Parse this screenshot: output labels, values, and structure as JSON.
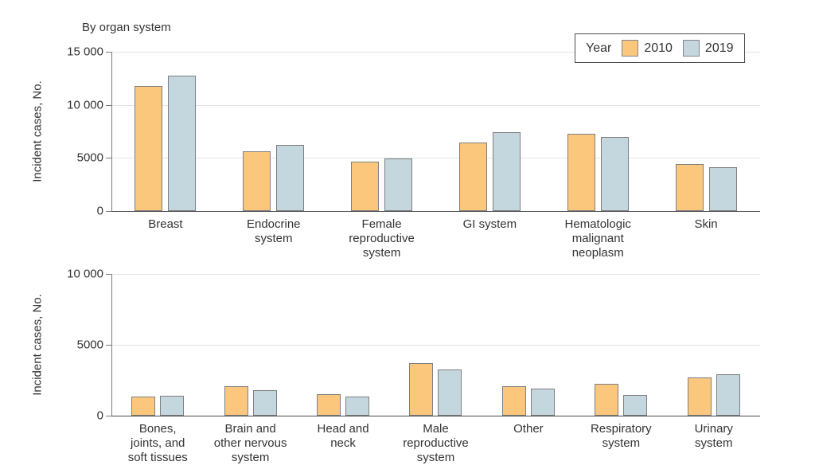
{
  "figure": {
    "title": "By organ system"
  },
  "legend": {
    "title": "Year",
    "items": [
      {
        "label": "2010",
        "color": "#FAC77D"
      },
      {
        "label": "2019",
        "color": "#C4D6DE"
      }
    ]
  },
  "style": {
    "bar_fill_2010": "#FAC77D",
    "bar_fill_2019": "#C4D6DE",
    "bar_border": "#7E7F81",
    "grid_color": "#E4E4E4",
    "axis_color": "#4A4A4C",
    "text_color": "#333333"
  },
  "chart_data": [
    {
      "type": "bar",
      "panel": "top",
      "title": "By organ system",
      "xlabel": "",
      "ylabel": "Incident cases, No.",
      "ylim": [
        0,
        15000
      ],
      "yticks": [
        0,
        5000,
        10000,
        15000
      ],
      "ytick_labels": [
        "0",
        "5000",
        "10 000",
        "15 000"
      ],
      "grid": true,
      "legend_position": "top-right",
      "categories": [
        "Breast",
        "Endocrine system",
        "Female reproductive system",
        "GI system",
        "Hematologic malignant neoplasm",
        "Skin"
      ],
      "category_labels": [
        "Breast",
        "Endocrine\nsystem",
        "Female\nreproductive\nsystem",
        "GI system",
        "Hematologic\nmalignant\nneoplasm",
        "Skin"
      ],
      "series": [
        {
          "name": "2010",
          "color": "#FAC77D",
          "values": [
            11800,
            5650,
            4650,
            6450,
            7300,
            4450
          ]
        },
        {
          "name": "2019",
          "color": "#C4D6DE",
          "values": [
            12750,
            6250,
            4950,
            7400,
            7000,
            4150
          ]
        }
      ]
    },
    {
      "type": "bar",
      "panel": "bottom",
      "title": "",
      "xlabel": "",
      "ylabel": "Incident cases, No.",
      "ylim": [
        0,
        10000
      ],
      "yticks": [
        0,
        5000,
        10000
      ],
      "ytick_labels": [
        "0",
        "5000",
        "10 000"
      ],
      "grid": true,
      "legend_position": "none",
      "categories": [
        "Bones, joints, and soft tissues",
        "Brain and other nervous system",
        "Head and neck",
        "Male reproductive system",
        "Other",
        "Respiratory system",
        "Urinary system"
      ],
      "category_labels": [
        "Bones,\njoints, and\nsoft tissues",
        "Brain and\nother nervous\nsystem",
        "Head and\nneck",
        "Male\nreproductive\nsystem",
        "Other",
        "Respiratory\nsystem",
        "Urinary\nsystem"
      ],
      "series": [
        {
          "name": "2010",
          "color": "#FAC77D",
          "values": [
            1350,
            2100,
            1500,
            3700,
            2100,
            2250,
            2700
          ]
        },
        {
          "name": "2019",
          "color": "#C4D6DE",
          "values": [
            1400,
            1800,
            1350,
            3250,
            1900,
            1450,
            2900
          ]
        }
      ]
    }
  ]
}
